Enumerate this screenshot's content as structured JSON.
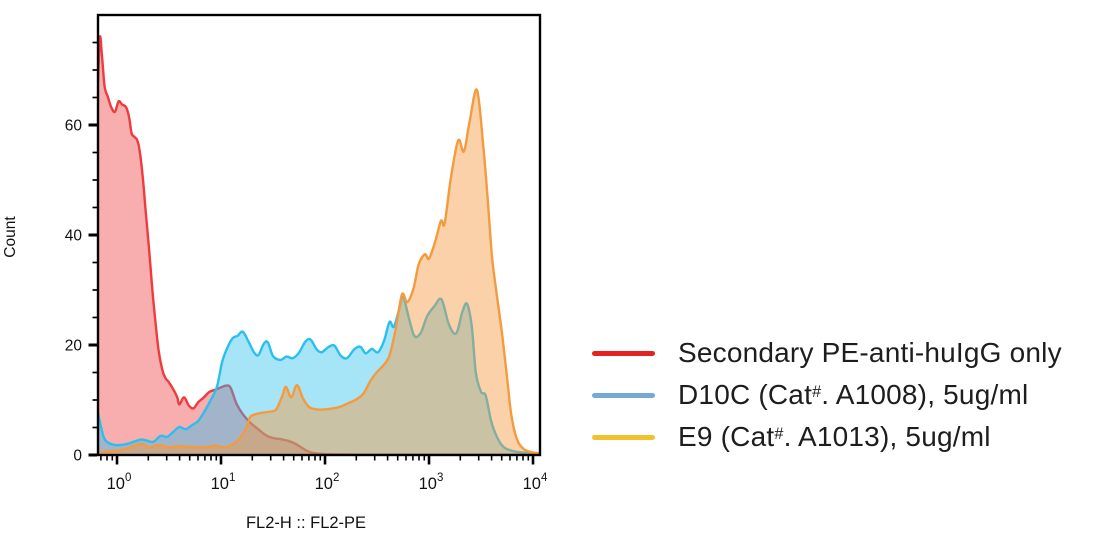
{
  "background": "#ffffff",
  "legend": {
    "items": [
      {
        "key": "secondary",
        "swatch_color": "#e42220",
        "label_pre": "Secondary PE-anti-huIgG only",
        "label_sup": "",
        "label_post": ""
      },
      {
        "key": "d10c",
        "swatch_color": "#75a9d6",
        "label_pre": "D10C (Cat",
        "label_sup": "#",
        "label_post": ". A1008), 5ug/ml"
      },
      {
        "key": "e9",
        "swatch_color": "#f2c12e",
        "label_pre": "E9 (Cat",
        "label_sup": "#",
        "label_post": ". A1013), 5ug/ml"
      }
    ]
  },
  "chart_data": {
    "type": "area",
    "variant": "flow-cytometry-overlay-histogram",
    "title": "",
    "xlabel": "FL2-H :: FL2-PE",
    "ylabel": "Count",
    "x_scale": "log10",
    "x_base": "10",
    "x_tick_exponents": [
      0,
      1,
      2,
      3,
      4
    ],
    "xlim_log10": [
      -0.183,
      4.067
    ],
    "ylim": [
      0,
      80
    ],
    "y_major_ticks": [
      0,
      20,
      40,
      60
    ],
    "y_minor_step": 5,
    "grid": false,
    "legend_position": "right-of-plot",
    "axis_color": "#000000",
    "series": [
      {
        "key": "secondary",
        "name": "Secondary PE-anti-huIgG only",
        "line_color": "#ee3b3e",
        "fill_opacity": 0.42,
        "points_log10x_count": [
          [
            -0.183,
            68
          ],
          [
            -0.165,
            76
          ],
          [
            -0.145,
            72.5
          ],
          [
            -0.12,
            67
          ],
          [
            -0.09,
            65.2
          ],
          [
            -0.055,
            63.2
          ],
          [
            -0.02,
            62.4
          ],
          [
            0.015,
            64.3
          ],
          [
            0.05,
            63.7
          ],
          [
            0.085,
            63.3
          ],
          [
            0.115,
            61.5
          ],
          [
            0.14,
            58.5
          ],
          [
            0.17,
            57.8
          ],
          [
            0.195,
            57.2
          ],
          [
            0.22,
            55
          ],
          [
            0.25,
            50
          ],
          [
            0.275,
            44.5
          ],
          [
            0.305,
            38
          ],
          [
            0.335,
            31
          ],
          [
            0.365,
            25
          ],
          [
            0.4,
            19
          ],
          [
            0.435,
            15.5
          ],
          [
            0.465,
            14
          ],
          [
            0.5,
            13.2
          ],
          [
            0.545,
            11.8
          ],
          [
            0.58,
            10.4
          ],
          [
            0.6,
            9.2
          ],
          [
            0.645,
            10.5
          ],
          [
            0.69,
            9.0
          ],
          [
            0.735,
            8.5
          ],
          [
            0.78,
            9.6
          ],
          [
            0.83,
            10.4
          ],
          [
            0.89,
            11.5
          ],
          [
            0.95,
            11.9
          ],
          [
            1.0,
            12.3
          ],
          [
            1.045,
            12.6
          ],
          [
            1.09,
            12.3
          ],
          [
            1.15,
            9.3
          ],
          [
            1.21,
            7.4
          ],
          [
            1.28,
            5.9
          ],
          [
            1.35,
            4.8
          ],
          [
            1.43,
            3.6
          ],
          [
            1.5,
            3.1
          ],
          [
            1.57,
            2.9
          ],
          [
            1.64,
            2.6
          ],
          [
            1.71,
            2.1
          ],
          [
            1.77,
            1.4
          ],
          [
            1.82,
            0.8
          ],
          [
            1.88,
            0.4
          ],
          [
            1.97,
            0.2
          ],
          [
            2.2,
            0.1
          ],
          [
            2.6,
            0.05
          ],
          [
            4.067,
            0.05
          ]
        ]
      },
      {
        "key": "d10c",
        "name": "D10C (Cat#. A1008), 5ug/ml",
        "line_color": "#2bbfee",
        "fill_opacity": 0.42,
        "points_log10x_count": [
          [
            -0.183,
            7.6
          ],
          [
            -0.155,
            5.2
          ],
          [
            -0.125,
            3.1
          ],
          [
            -0.09,
            2.3
          ],
          [
            -0.04,
            1.9
          ],
          [
            0.02,
            1.8
          ],
          [
            0.09,
            2.0
          ],
          [
            0.16,
            2.4
          ],
          [
            0.23,
            2.8
          ],
          [
            0.29,
            2.6
          ],
          [
            0.35,
            2.4
          ],
          [
            0.42,
            3.5
          ],
          [
            0.48,
            3.3
          ],
          [
            0.54,
            4.2
          ],
          [
            0.6,
            5.1
          ],
          [
            0.66,
            4.7
          ],
          [
            0.72,
            5.4
          ],
          [
            0.78,
            6.2
          ],
          [
            0.83,
            7.6
          ],
          [
            0.89,
            9.6
          ],
          [
            0.96,
            12.4
          ],
          [
            1.01,
            16.9
          ],
          [
            1.06,
            19.5
          ],
          [
            1.11,
            21.2
          ],
          [
            1.16,
            21.7
          ],
          [
            1.21,
            22.4
          ],
          [
            1.27,
            20.4
          ],
          [
            1.32,
            18.6
          ],
          [
            1.36,
            18.2
          ],
          [
            1.41,
            20.2
          ],
          [
            1.45,
            20.5
          ],
          [
            1.5,
            18.0
          ],
          [
            1.57,
            17.3
          ],
          [
            1.63,
            17.9
          ],
          [
            1.69,
            17.6
          ],
          [
            1.75,
            18.6
          ],
          [
            1.81,
            20.6
          ],
          [
            1.86,
            21.0
          ],
          [
            1.92,
            19.2
          ],
          [
            1.97,
            18.7
          ],
          [
            2.03,
            19.6
          ],
          [
            2.09,
            19.9
          ],
          [
            2.15,
            18.1
          ],
          [
            2.21,
            17.6
          ],
          [
            2.28,
            19.2
          ],
          [
            2.34,
            19.7
          ],
          [
            2.39,
            18.5
          ],
          [
            2.45,
            19.3
          ],
          [
            2.51,
            18.7
          ],
          [
            2.57,
            20.9
          ],
          [
            2.62,
            24.2
          ],
          [
            2.66,
            23.3
          ],
          [
            2.71,
            26.3
          ],
          [
            2.75,
            28.8
          ],
          [
            2.81,
            24.6
          ],
          [
            2.86,
            21.6
          ],
          [
            2.92,
            22.2
          ],
          [
            2.98,
            25.2
          ],
          [
            3.05,
            27.0
          ],
          [
            3.12,
            28.3
          ],
          [
            3.19,
            23.8
          ],
          [
            3.26,
            22.1
          ],
          [
            3.32,
            26.0
          ],
          [
            3.365,
            27.5
          ],
          [
            3.41,
            23.5
          ],
          [
            3.45,
            15.0
          ],
          [
            3.5,
            11.5
          ],
          [
            3.545,
            10.8
          ],
          [
            3.6,
            6.0
          ],
          [
            3.66,
            3.0
          ],
          [
            3.72,
            1.4
          ],
          [
            3.81,
            0.7
          ],
          [
            3.93,
            0.4
          ],
          [
            4.067,
            0.3
          ]
        ]
      },
      {
        "key": "e9",
        "name": "E9 (Cat#. A1013), 5ug/ml",
        "line_color": "#f49a3f",
        "fill_opacity": 0.45,
        "points_log10x_count": [
          [
            -0.183,
            0.5
          ],
          [
            -0.05,
            0.7
          ],
          [
            0.08,
            1.1
          ],
          [
            0.17,
            1.7
          ],
          [
            0.24,
            2.0
          ],
          [
            0.31,
            1.4
          ],
          [
            0.4,
            1.8
          ],
          [
            0.49,
            1.4
          ],
          [
            0.58,
            1.6
          ],
          [
            0.68,
            1.5
          ],
          [
            0.78,
            1.4
          ],
          [
            0.88,
            1.5
          ],
          [
            0.95,
            1.7
          ],
          [
            1.03,
            1.4
          ],
          [
            1.1,
            1.8
          ],
          [
            1.17,
            2.8
          ],
          [
            1.24,
            4.8
          ],
          [
            1.28,
            6.9
          ],
          [
            1.33,
            7.4
          ],
          [
            1.4,
            7.7
          ],
          [
            1.47,
            7.9
          ],
          [
            1.53,
            8.3
          ],
          [
            1.59,
            10.8
          ],
          [
            1.625,
            12.4
          ],
          [
            1.675,
            10.5
          ],
          [
            1.73,
            12.7
          ],
          [
            1.79,
            10.2
          ],
          [
            1.85,
            8.7
          ],
          [
            1.92,
            8.3
          ],
          [
            2.0,
            8.3
          ],
          [
            2.08,
            8.5
          ],
          [
            2.15,
            8.8
          ],
          [
            2.22,
            9.4
          ],
          [
            2.3,
            10.1
          ],
          [
            2.37,
            11.2
          ],
          [
            2.44,
            13.6
          ],
          [
            2.5,
            15.1
          ],
          [
            2.56,
            16.3
          ],
          [
            2.62,
            18.1
          ],
          [
            2.68,
            23.0
          ],
          [
            2.74,
            29.2
          ],
          [
            2.79,
            27.8
          ],
          [
            2.85,
            30.2
          ],
          [
            2.9,
            34.6
          ],
          [
            2.96,
            36.5
          ],
          [
            3.0,
            35.7
          ],
          [
            3.06,
            38.9
          ],
          [
            3.115,
            42.6
          ],
          [
            3.15,
            42.1
          ],
          [
            3.21,
            50.4
          ],
          [
            3.28,
            57.2
          ],
          [
            3.335,
            55.2
          ],
          [
            3.39,
            60.6
          ],
          [
            3.46,
            66.4
          ],
          [
            3.52,
            56.5
          ],
          [
            3.56,
            47.5
          ],
          [
            3.605,
            36.0
          ],
          [
            3.65,
            29.4
          ],
          [
            3.7,
            22.4
          ],
          [
            3.745,
            15.0
          ],
          [
            3.79,
            7.4
          ],
          [
            3.845,
            2.9
          ],
          [
            3.91,
            1.1
          ],
          [
            3.99,
            0.5
          ],
          [
            4.067,
            0.3
          ]
        ]
      }
    ]
  }
}
